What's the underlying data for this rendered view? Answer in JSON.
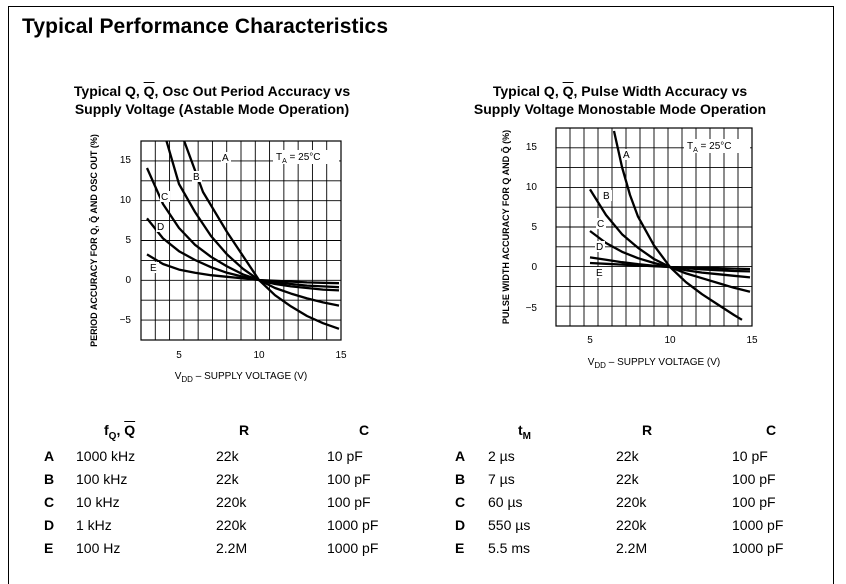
{
  "page": {
    "title": "Typical Performance Characteristics"
  },
  "chart_data": [
    {
      "type": "line",
      "title_line1_pre": "Typical Q, ",
      "title_line1_q": "Q",
      "title_line1_post": ", Osc Out Period Accuracy vs",
      "title_line2": "Supply Voltage (Astable Mode Operation)",
      "ylabel": "PERIOD ACCURACY FOR Q, Q̄ AND OSC OUT (%)",
      "xlabel_main": "V",
      "xlabel_sub": "DD",
      "xlabel_rest": " – SUPPLY VOLTAGE (V)",
      "temp_label_main": "T",
      "temp_label_sub": "A",
      "temp_label_rest": " = 25°C",
      "xlim": [
        3,
        15
      ],
      "ylim": [
        -7,
        17.5
      ],
      "x_ticks": [
        "5",
        "10",
        "15"
      ],
      "y_ticks": [
        "15",
        "10",
        "5",
        "0",
        "−5"
      ],
      "grid": true,
      "series": [
        {
          "name": "A",
          "x": [
            5.3,
            6.5,
            8,
            9,
            10,
            11,
            12,
            13,
            14,
            15
          ],
          "y": [
            17.5,
            11,
            6,
            3,
            0,
            -1.9,
            -3.3,
            -4.5,
            -5.4,
            -6.1
          ]
        },
        {
          "name": "B",
          "x": [
            4.2,
            5,
            6,
            7,
            8,
            9,
            10,
            11,
            12,
            13,
            14,
            15
          ],
          "y": [
            17.5,
            12,
            8.5,
            5.5,
            3.2,
            1.4,
            0,
            -1,
            -1.7,
            -2.3,
            -2.8,
            -3.2
          ]
        },
        {
          "name": "C",
          "x": [
            3,
            4,
            5,
            6,
            7,
            8,
            9,
            10,
            11,
            12,
            13,
            14,
            15
          ],
          "y": [
            14,
            9.5,
            6.5,
            4.4,
            2.9,
            1.7,
            0.7,
            0,
            -0.5,
            -0.8,
            -1,
            -1.2,
            -1.3
          ]
        },
        {
          "name": "D",
          "x": [
            3,
            4,
            5,
            6,
            7,
            8,
            9,
            10,
            11,
            12,
            13,
            14,
            15
          ],
          "y": [
            7.7,
            5.2,
            3.6,
            2.5,
            1.6,
            0.9,
            0.4,
            0,
            -0.3,
            -0.5,
            -0.7,
            -0.8,
            -0.9
          ]
        },
        {
          "name": "E",
          "x": [
            3,
            4,
            5,
            6,
            7,
            8,
            9,
            10,
            11,
            12,
            13,
            14,
            15
          ],
          "y": [
            3.2,
            2,
            1.3,
            0.9,
            0.6,
            0.4,
            0.2,
            0,
            -0.1,
            -0.2,
            -0.3,
            -0.35,
            -0.4
          ]
        }
      ]
    },
    {
      "type": "line",
      "title_line1_pre": "Typical Q, ",
      "title_line1_q": "Q",
      "title_line1_post": ", Pulse Width Accuracy vs",
      "title_line2": "Supply Voltage Monostable Mode Operation",
      "ylabel": "PULSE WIDTH ACCURACY FOR Q AND Q̄ (%)",
      "xlabel_main": "V",
      "xlabel_sub": "DD",
      "xlabel_rest": " – SUPPLY VOLTAGE (V)",
      "temp_label_main": "T",
      "temp_label_sub": "A",
      "temp_label_rest": " = 25°C",
      "xlim": [
        3,
        15
      ],
      "ylim": [
        -7,
        17
      ],
      "x_ticks": [
        "5",
        "10",
        "15"
      ],
      "y_ticks": [
        "15",
        "10",
        "5",
        "0",
        "−5"
      ],
      "grid": true,
      "series": [
        {
          "name": "A",
          "x": [
            6.5,
            7,
            7.5,
            8,
            9,
            10,
            11,
            12,
            13,
            14,
            14.5
          ],
          "y": [
            17,
            12.5,
            9,
            6.3,
            2.7,
            0,
            -1.9,
            -3.4,
            -4.7,
            -6,
            -6.6
          ]
        },
        {
          "name": "B",
          "x": [
            5,
            6,
            7,
            8,
            9,
            10,
            11,
            12,
            13,
            14,
            15
          ],
          "y": [
            9.7,
            6.5,
            4.1,
            2.4,
            1,
            0,
            -0.8,
            -1.4,
            -2,
            -2.6,
            -3.1
          ]
        },
        {
          "name": "C",
          "x": [
            5,
            6,
            7,
            8,
            9,
            10,
            11,
            12,
            13,
            14,
            15
          ],
          "y": [
            4.5,
            3,
            1.9,
            1.1,
            0.5,
            0,
            -0.4,
            -0.7,
            -0.9,
            -1.1,
            -1.3
          ]
        },
        {
          "name": "D",
          "x": [
            5,
            6,
            7,
            8,
            9,
            10,
            11,
            12,
            13,
            14,
            15
          ],
          "y": [
            1.2,
            0.9,
            0.6,
            0.35,
            0.15,
            0,
            -0.15,
            -0.3,
            -0.4,
            -0.5,
            -0.55
          ]
        },
        {
          "name": "E",
          "x": [
            5,
            6,
            7,
            8,
            9,
            10,
            11,
            12,
            13,
            14,
            15
          ],
          "y": [
            0.5,
            0.4,
            0.3,
            0.2,
            0.1,
            0,
            -0.05,
            -0.1,
            -0.15,
            -0.2,
            -0.25
          ]
        }
      ]
    }
  ],
  "table_left": {
    "header_f_main": "f",
    "header_f_sub": "Q",
    "header_f_mid": ", ",
    "header_f_q": "Q",
    "header_r": "R",
    "header_c": "C",
    "rows": [
      {
        "letter": "A",
        "value": "1000 kHz",
        "r": "22k",
        "c": "10 pF"
      },
      {
        "letter": "B",
        "value": "100 kHz",
        "r": "22k",
        "c": "100 pF"
      },
      {
        "letter": "C",
        "value": "10 kHz",
        "r": "220k",
        "c": "100 pF"
      },
      {
        "letter": "D",
        "value": "1 kHz",
        "r": "220k",
        "c": "1000 pF"
      },
      {
        "letter": "E",
        "value": "100 Hz",
        "r": "2.2M",
        "c": "1000 pF"
      }
    ]
  },
  "table_right": {
    "header_t_main": "t",
    "header_t_sub": "M",
    "header_r": "R",
    "header_c": "C",
    "rows": [
      {
        "letter": "A",
        "value": "2 µs",
        "r": "22k",
        "c": "10 pF"
      },
      {
        "letter": "B",
        "value": "7 µs",
        "r": "22k",
        "c": "100 pF"
      },
      {
        "letter": "C",
        "value": "60 µs",
        "r": "220k",
        "c": "100 pF"
      },
      {
        "letter": "D",
        "value": "550 µs",
        "r": "220k",
        "c": "1000 pF"
      },
      {
        "letter": "E",
        "value": "5.5 ms",
        "r": "2.2M",
        "c": "1000 pF"
      }
    ]
  }
}
